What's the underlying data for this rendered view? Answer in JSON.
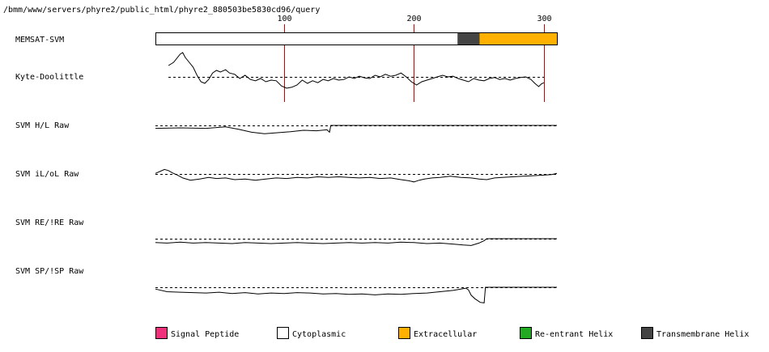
{
  "header": {
    "path": "/bmm/www/servers/phyre2/public_html/phyre2_880503be5830cd96/query"
  },
  "chart_data": {
    "type": "line",
    "title": "",
    "x_range": [
      1,
      310
    ],
    "x_ticks": [
      {
        "value": 100,
        "label": "100"
      },
      {
        "value": 200,
        "label": "200"
      },
      {
        "value": 300,
        "label": "300"
      }
    ],
    "memsat": {
      "label": "MEMSAT-SVM",
      "segments": [
        {
          "start": 1,
          "end": 233,
          "class": "Cytoplasmic",
          "color": "#ffffff"
        },
        {
          "start": 234,
          "end": 250,
          "class": "Transmembrane Helix",
          "color": "#444444"
        },
        {
          "start": 251,
          "end": 310,
          "class": "Extracellular",
          "color": "#ffb000"
        }
      ]
    },
    "tracks": [
      {
        "name": "Kyte-Doolittle",
        "x_start": 11,
        "x_end": 300,
        "baseline": 0,
        "points": [
          [
            11,
            0.35
          ],
          [
            15,
            0.45
          ],
          [
            20,
            0.7
          ],
          [
            22,
            0.75
          ],
          [
            24,
            0.6
          ],
          [
            27,
            0.45
          ],
          [
            30,
            0.3
          ],
          [
            33,
            0.05
          ],
          [
            36,
            -0.15
          ],
          [
            39,
            -0.2
          ],
          [
            42,
            -0.08
          ],
          [
            45,
            0.12
          ],
          [
            48,
            0.2
          ],
          [
            51,
            0.15
          ],
          [
            55,
            0.22
          ],
          [
            58,
            0.12
          ],
          [
            62,
            0.08
          ],
          [
            66,
            -0.05
          ],
          [
            70,
            0.05
          ],
          [
            74,
            -0.08
          ],
          [
            78,
            -0.12
          ],
          [
            82,
            -0.05
          ],
          [
            86,
            -0.15
          ],
          [
            90,
            -0.1
          ],
          [
            94,
            -0.12
          ],
          [
            98,
            -0.28
          ],
          [
            102,
            -0.35
          ],
          [
            106,
            -0.32
          ],
          [
            110,
            -0.25
          ],
          [
            114,
            -0.1
          ],
          [
            118,
            -0.2
          ],
          [
            122,
            -0.12
          ],
          [
            126,
            -0.18
          ],
          [
            130,
            -0.08
          ],
          [
            134,
            -0.12
          ],
          [
            138,
            -0.05
          ],
          [
            142,
            -0.1
          ],
          [
            146,
            -0.08
          ],
          [
            150,
            0.0
          ],
          [
            154,
            -0.05
          ],
          [
            158,
            0.02
          ],
          [
            162,
            -0.03
          ],
          [
            166,
            -0.05
          ],
          [
            170,
            0.05
          ],
          [
            174,
            0.0
          ],
          [
            178,
            0.08
          ],
          [
            182,
            0.02
          ],
          [
            186,
            0.05
          ],
          [
            190,
            0.12
          ],
          [
            194,
            0.0
          ],
          [
            198,
            -0.15
          ],
          [
            202,
            -0.25
          ],
          [
            206,
            -0.15
          ],
          [
            210,
            -0.1
          ],
          [
            214,
            -0.05
          ],
          [
            218,
            0.0
          ],
          [
            222,
            0.05
          ],
          [
            226,
            0.0
          ],
          [
            230,
            0.02
          ],
          [
            234,
            -0.05
          ],
          [
            238,
            -0.1
          ],
          [
            242,
            -0.15
          ],
          [
            246,
            -0.05
          ],
          [
            250,
            -0.1
          ],
          [
            254,
            -0.12
          ],
          [
            258,
            -0.05
          ],
          [
            262,
            -0.02
          ],
          [
            266,
            -0.08
          ],
          [
            270,
            -0.05
          ],
          [
            274,
            -0.1
          ],
          [
            278,
            -0.05
          ],
          [
            282,
            -0.02
          ],
          [
            286,
            0.0
          ],
          [
            290,
            -0.08
          ],
          [
            293,
            -0.2
          ],
          [
            296,
            -0.3
          ],
          [
            298,
            -0.22
          ],
          [
            300,
            -0.18
          ]
        ]
      },
      {
        "name": "SVM H/L Raw",
        "x_start": 1,
        "x_end": 310,
        "baseline": 0,
        "points": [
          [
            1,
            -0.3
          ],
          [
            20,
            -0.25
          ],
          [
            40,
            -0.3
          ],
          [
            55,
            -0.15
          ],
          [
            65,
            -0.4
          ],
          [
            75,
            -0.7
          ],
          [
            85,
            -0.85
          ],
          [
            95,
            -0.75
          ],
          [
            105,
            -0.65
          ],
          [
            115,
            -0.5
          ],
          [
            125,
            -0.55
          ],
          [
            133,
            -0.45
          ],
          [
            135,
            -0.7
          ],
          [
            136,
            0.0
          ],
          [
            310,
            0.0
          ]
        ]
      },
      {
        "name": "SVM iL/oL Raw",
        "x_start": 1,
        "x_end": 310,
        "baseline": 0,
        "points": [
          [
            1,
            0.05
          ],
          [
            5,
            0.25
          ],
          [
            8,
            0.4
          ],
          [
            11,
            0.3
          ],
          [
            14,
            0.1
          ],
          [
            18,
            -0.1
          ],
          [
            22,
            -0.35
          ],
          [
            28,
            -0.55
          ],
          [
            35,
            -0.45
          ],
          [
            42,
            -0.3
          ],
          [
            48,
            -0.4
          ],
          [
            55,
            -0.35
          ],
          [
            62,
            -0.5
          ],
          [
            70,
            -0.45
          ],
          [
            78,
            -0.55
          ],
          [
            86,
            -0.45
          ],
          [
            94,
            -0.35
          ],
          [
            102,
            -0.4
          ],
          [
            110,
            -0.3
          ],
          [
            118,
            -0.35
          ],
          [
            126,
            -0.25
          ],
          [
            134,
            -0.3
          ],
          [
            142,
            -0.25
          ],
          [
            150,
            -0.3
          ],
          [
            158,
            -0.35
          ],
          [
            166,
            -0.3
          ],
          [
            174,
            -0.4
          ],
          [
            182,
            -0.35
          ],
          [
            190,
            -0.5
          ],
          [
            196,
            -0.6
          ],
          [
            200,
            -0.7
          ],
          [
            204,
            -0.55
          ],
          [
            208,
            -0.45
          ],
          [
            214,
            -0.35
          ],
          [
            220,
            -0.3
          ],
          [
            228,
            -0.2
          ],
          [
            236,
            -0.3
          ],
          [
            244,
            -0.35
          ],
          [
            250,
            -0.45
          ],
          [
            256,
            -0.5
          ],
          [
            262,
            -0.35
          ],
          [
            268,
            -0.3
          ],
          [
            276,
            -0.25
          ],
          [
            284,
            -0.2
          ],
          [
            292,
            -0.15
          ],
          [
            300,
            -0.1
          ],
          [
            306,
            -0.05
          ],
          [
            310,
            0.05
          ]
        ]
      },
      {
        "name": "SVM RE/!RE Raw",
        "x_start": 1,
        "x_end": 310,
        "baseline": 0,
        "points": [
          [
            1,
            -0.4
          ],
          [
            10,
            -0.45
          ],
          [
            20,
            -0.35
          ],
          [
            30,
            -0.45
          ],
          [
            40,
            -0.4
          ],
          [
            50,
            -0.45
          ],
          [
            60,
            -0.5
          ],
          [
            70,
            -0.4
          ],
          [
            80,
            -0.45
          ],
          [
            90,
            -0.5
          ],
          [
            100,
            -0.45
          ],
          [
            110,
            -0.4
          ],
          [
            120,
            -0.45
          ],
          [
            130,
            -0.5
          ],
          [
            140,
            -0.45
          ],
          [
            150,
            -0.4
          ],
          [
            160,
            -0.45
          ],
          [
            170,
            -0.4
          ],
          [
            180,
            -0.45
          ],
          [
            190,
            -0.35
          ],
          [
            200,
            -0.4
          ],
          [
            210,
            -0.5
          ],
          [
            220,
            -0.45
          ],
          [
            230,
            -0.55
          ],
          [
            238,
            -0.65
          ],
          [
            244,
            -0.7
          ],
          [
            250,
            -0.45
          ],
          [
            254,
            -0.2
          ],
          [
            256,
            0.0
          ],
          [
            310,
            0.0
          ]
        ]
      },
      {
        "name": "SVM SP/!SP Raw",
        "x_start": 1,
        "x_end": 310,
        "baseline": 0,
        "points": [
          [
            1,
            -0.2
          ],
          [
            10,
            -0.5
          ],
          [
            20,
            -0.55
          ],
          [
            30,
            -0.6
          ],
          [
            40,
            -0.65
          ],
          [
            50,
            -0.55
          ],
          [
            60,
            -0.7
          ],
          [
            70,
            -0.6
          ],
          [
            80,
            -0.75
          ],
          [
            90,
            -0.65
          ],
          [
            100,
            -0.7
          ],
          [
            110,
            -0.6
          ],
          [
            120,
            -0.65
          ],
          [
            130,
            -0.75
          ],
          [
            140,
            -0.7
          ],
          [
            150,
            -0.8
          ],
          [
            160,
            -0.75
          ],
          [
            170,
            -0.85
          ],
          [
            180,
            -0.75
          ],
          [
            190,
            -0.8
          ],
          [
            200,
            -0.7
          ],
          [
            210,
            -0.65
          ],
          [
            220,
            -0.5
          ],
          [
            230,
            -0.35
          ],
          [
            236,
            -0.2
          ],
          [
            240,
            -0.1
          ],
          [
            242,
            -0.3
          ],
          [
            244,
            -0.9
          ],
          [
            247,
            -1.3
          ],
          [
            251,
            -1.7
          ],
          [
            254,
            -1.75
          ],
          [
            255,
            0.0
          ],
          [
            310,
            0.0
          ]
        ]
      }
    ],
    "legend": {
      "placement": "bottom",
      "items": [
        {
          "label": "Signal Peptide",
          "color": "#f0307a"
        },
        {
          "label": "Cytoplasmic",
          "color": "#ffffff"
        },
        {
          "label": "Extracellular",
          "color": "#ffb000"
        },
        {
          "label": "Re-entrant Helix",
          "color": "#22aa22"
        },
        {
          "label": "Transmembrane Helix",
          "color": "#444444"
        }
      ]
    },
    "colors": {
      "tick_line": "#cc0000",
      "trace": "#000000",
      "baseline": "#000000"
    }
  }
}
